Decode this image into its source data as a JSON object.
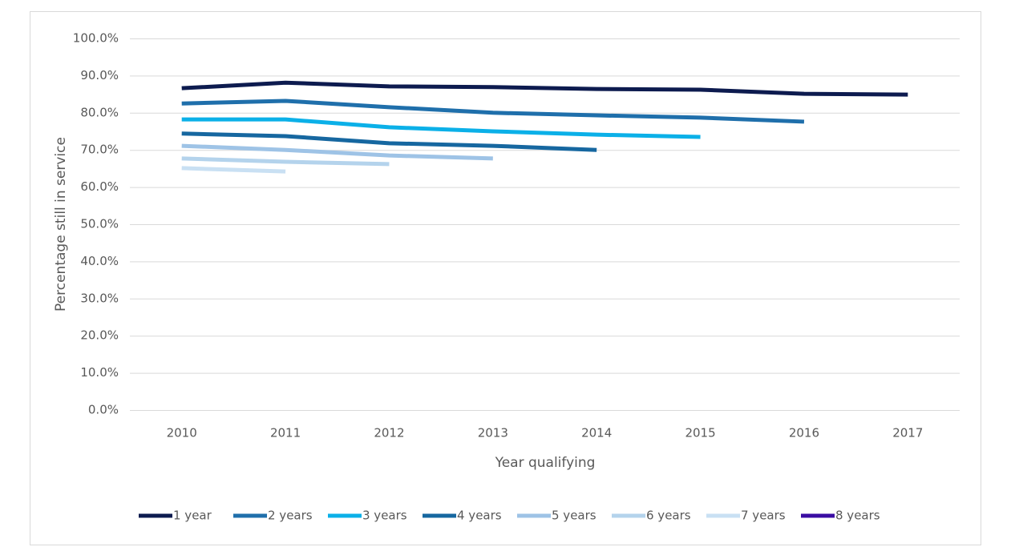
{
  "chart_data": {
    "type": "line",
    "x_label": "Year qualifying",
    "y_label": "Percentage still in service",
    "categories": [
      "2010",
      "2011",
      "2012",
      "2013",
      "2014",
      "2015",
      "2016",
      "2017"
    ],
    "ylim": [
      0,
      100
    ],
    "yticks": [
      {
        "value": 0,
        "label": "0.0%"
      },
      {
        "value": 10,
        "label": "10.0%"
      },
      {
        "value": 20,
        "label": "20.0%"
      },
      {
        "value": 30,
        "label": "30.0%"
      },
      {
        "value": 40,
        "label": "40.0%"
      },
      {
        "value": 50,
        "label": "50.0%"
      },
      {
        "value": 60,
        "label": "60.0%"
      },
      {
        "value": 70,
        "label": "70.0%"
      },
      {
        "value": 80,
        "label": "80.0%"
      },
      {
        "value": 90,
        "label": "90.0%"
      },
      {
        "value": 100,
        "label": "100.0%"
      }
    ],
    "grid": true,
    "legend": "bottom",
    "series": [
      {
        "name": "1 year",
        "color": "#0d1b4f",
        "values": [
          86.6,
          88.1,
          87.1,
          86.9,
          86.4,
          86.2,
          85.1,
          84.9
        ]
      },
      {
        "name": "2 years",
        "color": "#1f6fab",
        "values": [
          82.5,
          83.2,
          81.5,
          80.0,
          79.3,
          78.7,
          77.6,
          null
        ]
      },
      {
        "name": "3 years",
        "color": "#0bb0e8",
        "values": [
          78.2,
          78.2,
          76.1,
          75.0,
          74.1,
          73.5,
          null,
          null
        ]
      },
      {
        "name": "4 years",
        "color": "#1667a0",
        "values": [
          74.4,
          73.7,
          71.8,
          71.1,
          70.0,
          null,
          null,
          null
        ]
      },
      {
        "name": "5 years",
        "color": "#9ec3e6",
        "values": [
          71.1,
          70.0,
          68.5,
          67.7,
          null,
          null,
          null,
          null
        ]
      },
      {
        "name": "6 years",
        "color": "#b4d3ec",
        "values": [
          67.7,
          66.8,
          66.2,
          null,
          null,
          null,
          null,
          null
        ]
      },
      {
        "name": "7 years",
        "color": "#c9e0f3",
        "values": [
          65.1,
          64.2,
          null,
          null,
          null,
          null,
          null,
          null
        ]
      },
      {
        "name": "8 years",
        "color": "#3a0ca3",
        "values": [
          null,
          null,
          null,
          null,
          null,
          null,
          null,
          null
        ]
      }
    ]
  }
}
